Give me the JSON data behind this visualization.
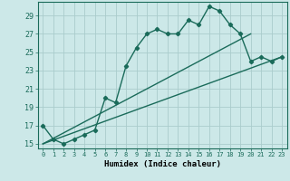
{
  "xlabel": "Humidex (Indice chaleur)",
  "ylabel": "",
  "bg_color": "#cce8e8",
  "grid_color": "#aacccc",
  "line_color": "#1a6b5a",
  "xlim": [
    -0.5,
    23.5
  ],
  "ylim": [
    14.5,
    30.5
  ],
  "xticks": [
    0,
    1,
    2,
    3,
    4,
    5,
    6,
    7,
    8,
    9,
    10,
    11,
    12,
    13,
    14,
    15,
    16,
    17,
    18,
    19,
    20,
    21,
    22,
    23
  ],
  "yticks": [
    15,
    17,
    19,
    21,
    23,
    25,
    27,
    29
  ],
  "series1_x": [
    0,
    1,
    2,
    3,
    4,
    5,
    6,
    7,
    8,
    9,
    10,
    11,
    12,
    13,
    14,
    15,
    16,
    17,
    18,
    19,
    20,
    21,
    22,
    23
  ],
  "series1_y": [
    17,
    15.5,
    15,
    15.5,
    16,
    16.5,
    20,
    19.5,
    23.5,
    25.5,
    27,
    27.5,
    27,
    27,
    28.5,
    28,
    30,
    29.5,
    28,
    27,
    24,
    24.5,
    24,
    24.5
  ],
  "series2_x": [
    0,
    20
  ],
  "series2_y": [
    15,
    27
  ],
  "series3_x": [
    0,
    23
  ],
  "series3_y": [
    15,
    24.5
  ]
}
